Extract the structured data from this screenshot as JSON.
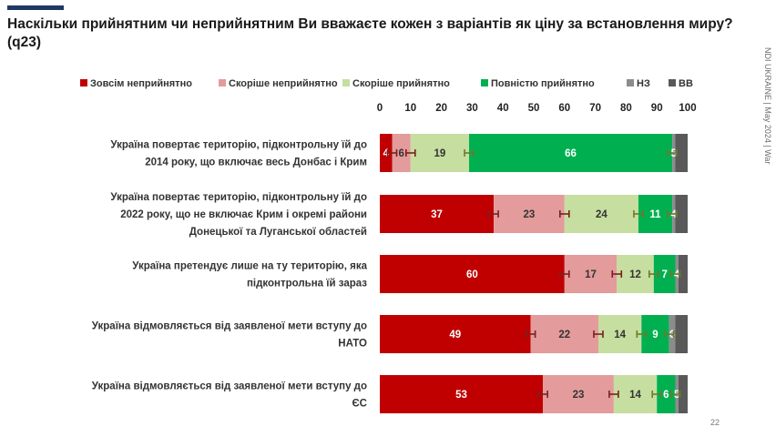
{
  "header": {
    "title": "Наскільки прийнятним чи неприйнятним Ви вважаєте кожен з варіантів як ціну за встановлення миру? (q23)",
    "side_label": "NDI UKRAINE | May 2024 | War",
    "page_number": "22"
  },
  "chart_data": {
    "type": "bar",
    "orientation": "horizontal",
    "stacked": true,
    "title": "Наскільки прийнятним чи неприйнятним Ви вважаєте кожен з варіантів як ціну за встановлення миру? (q23)",
    "xlim": [
      0,
      100
    ],
    "x_ticks": [
      0,
      10,
      20,
      30,
      40,
      50,
      60,
      70,
      80,
      90,
      100
    ],
    "legend_position": "top",
    "categories": [
      [
        "Україна повертає територію, підконтрольну їй до",
        "2014 року, що включає весь Донбас і Крим"
      ],
      [
        "Україна повертає територію, підконтрольну їй до",
        "2022 року, що не включає Крим і окремі райони",
        "Донецької та Луганської областей"
      ],
      [
        "Україна претендує лише на ту територію, яка",
        "підконтрольна їй зараз"
      ],
      [
        "Україна відмовляється  від заявленої мети вступу до",
        "НАТО"
      ],
      [
        "Україна відмовляється  від заявленої мети вступу до",
        "ЄС"
      ]
    ],
    "series": [
      {
        "name": "Зовсім неприйнятно",
        "color": "#c00000",
        "label_color": "#ffffff",
        "values": [
          4,
          37,
          60,
          49,
          53
        ]
      },
      {
        "name": "Скоріше неприйнятно",
        "color": "#e39b9b",
        "label_color": "#333333",
        "values": [
          6,
          23,
          17,
          22,
          23
        ]
      },
      {
        "name": "Скоріше прийнятно",
        "color": "#c6dea0",
        "label_color": "#333333",
        "values": [
          19,
          24,
          12,
          14,
          14
        ]
      },
      {
        "name": "Повністю прийнятно",
        "color": "#00b050",
        "label_color": "#ffffff",
        "values": [
          66,
          11,
          7,
          9,
          6
        ]
      },
      {
        "name": "НЗ",
        "color": "#8c8c8c",
        "label_color": "#ffffff",
        "values": [
          1,
          1,
          1,
          2,
          1
        ]
      },
      {
        "name": "ВВ",
        "color": "#595959",
        "label_color": "#ffffff",
        "values": [
          4,
          4,
          3,
          4,
          3
        ]
      }
    ],
    "data_labels": [
      [
        "4",
        "6",
        "19",
        "66",
        "5",
        ""
      ],
      [
        "37",
        "23",
        "24",
        "11",
        "4",
        ""
      ],
      [
        "60",
        "17",
        "12",
        "7",
        "4",
        ""
      ],
      [
        "49",
        "22",
        "14",
        "9",
        "6",
        ""
      ],
      [
        "53",
        "23",
        "14",
        "6",
        "5",
        ""
      ]
    ],
    "error_bars": true,
    "grid": false
  }
}
